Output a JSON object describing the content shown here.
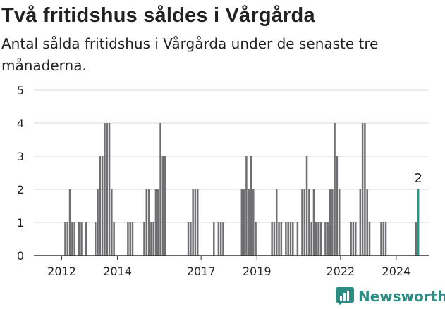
{
  "title": "Två fritidshus såldes i Vårgårda",
  "subtitle": "Antal sålda fritidshus i Vårgårda under de senaste tre månaderna.",
  "brand": {
    "name": "Newsworthy",
    "icon": "bar-chart-logo-icon",
    "color": "#2c8c84"
  },
  "colors": {
    "bar": "#6e6e73",
    "highlight": "#2a9688",
    "grid": "#d9d9d9",
    "axis": "#333333"
  },
  "chart_data": {
    "type": "bar",
    "title": "Två fritidshus såldes i Vårgårda",
    "subtitle": "Antal sålda fritidshus i Vårgårda under de senaste tre månaderna.",
    "xlabel": "",
    "ylabel": "",
    "ylim": [
      0,
      5
    ],
    "yticks": [
      0,
      1,
      2,
      3,
      4,
      5
    ],
    "x_axis": {
      "type": "date",
      "start": "2011-01",
      "end": "2025-03",
      "unit": "month"
    },
    "xticks": [
      {
        "year": 2012,
        "label": "2012"
      },
      {
        "year": 2014,
        "label": "2014"
      },
      {
        "year": 2017,
        "label": "2017"
      },
      {
        "year": 2019,
        "label": "2019"
      },
      {
        "year": 2022,
        "label": "2022"
      },
      {
        "year": 2024,
        "label": "2024"
      }
    ],
    "grid": true,
    "annotation": {
      "month": "2024-10",
      "value": 2,
      "label": "2"
    },
    "series": [
      {
        "values": [
          [
            "2012-02",
            1
          ],
          [
            "2012-03",
            1
          ],
          [
            "2012-04",
            2
          ],
          [
            "2012-05",
            1
          ],
          [
            "2012-06",
            1
          ],
          [
            "2012-08",
            1
          ],
          [
            "2012-09",
            1
          ],
          [
            "2012-11",
            1
          ],
          [
            "2013-03",
            1
          ],
          [
            "2013-04",
            2
          ],
          [
            "2013-05",
            3
          ],
          [
            "2013-06",
            3
          ],
          [
            "2013-07",
            4
          ],
          [
            "2013-08",
            4
          ],
          [
            "2013-09",
            4
          ],
          [
            "2013-10",
            2
          ],
          [
            "2013-11",
            1
          ],
          [
            "2014-05",
            1
          ],
          [
            "2014-06",
            1
          ],
          [
            "2014-07",
            1
          ],
          [
            "2014-12",
            1
          ],
          [
            "2015-01",
            2
          ],
          [
            "2015-02",
            2
          ],
          [
            "2015-03",
            1
          ],
          [
            "2015-04",
            1
          ],
          [
            "2015-05",
            2
          ],
          [
            "2015-06",
            2
          ],
          [
            "2015-07",
            4
          ],
          [
            "2015-08",
            3
          ],
          [
            "2015-09",
            3
          ],
          [
            "2016-07",
            1
          ],
          [
            "2016-08",
            1
          ],
          [
            "2016-09",
            2
          ],
          [
            "2016-10",
            2
          ],
          [
            "2016-11",
            2
          ],
          [
            "2017-06",
            1
          ],
          [
            "2017-08",
            1
          ],
          [
            "2017-09",
            1
          ],
          [
            "2017-10",
            1
          ],
          [
            "2018-06",
            2
          ],
          [
            "2018-07",
            2
          ],
          [
            "2018-08",
            3
          ],
          [
            "2018-09",
            2
          ],
          [
            "2018-10",
            3
          ],
          [
            "2018-11",
            2
          ],
          [
            "2018-12",
            1
          ],
          [
            "2019-07",
            1
          ],
          [
            "2019-08",
            1
          ],
          [
            "2019-09",
            2
          ],
          [
            "2019-10",
            1
          ],
          [
            "2019-11",
            1
          ],
          [
            "2020-01",
            1
          ],
          [
            "2020-02",
            1
          ],
          [
            "2020-03",
            1
          ],
          [
            "2020-04",
            1
          ],
          [
            "2020-06",
            1
          ],
          [
            "2020-08",
            2
          ],
          [
            "2020-09",
            2
          ],
          [
            "2020-10",
            3
          ],
          [
            "2020-11",
            2
          ],
          [
            "2020-12",
            1
          ],
          [
            "2021-01",
            2
          ],
          [
            "2021-02",
            1
          ],
          [
            "2021-03",
            1
          ],
          [
            "2021-04",
            1
          ],
          [
            "2021-06",
            1
          ],
          [
            "2021-07",
            1
          ],
          [
            "2021-08",
            2
          ],
          [
            "2021-09",
            2
          ],
          [
            "2021-10",
            4
          ],
          [
            "2021-11",
            3
          ],
          [
            "2021-12",
            2
          ],
          [
            "2022-05",
            1
          ],
          [
            "2022-06",
            1
          ],
          [
            "2022-07",
            1
          ],
          [
            "2022-09",
            2
          ],
          [
            "2022-10",
            4
          ],
          [
            "2022-11",
            4
          ],
          [
            "2022-12",
            2
          ],
          [
            "2023-01",
            1
          ],
          [
            "2023-06",
            1
          ],
          [
            "2023-07",
            1
          ],
          [
            "2023-08",
            1
          ],
          [
            "2024-09",
            1
          ],
          [
            "2024-10",
            2
          ]
        ]
      }
    ]
  }
}
